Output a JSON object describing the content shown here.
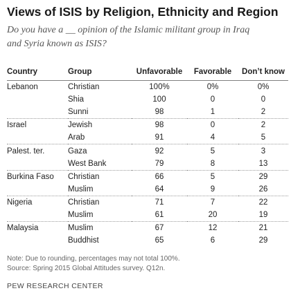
{
  "header": {
    "title": "Views of ISIS by Religion, Ethnicity and Region",
    "subtitle": "Do you have a __ opinion of the Islamic militant group in Iraq and Syria known as ISIS?"
  },
  "chart_data": {
    "type": "table",
    "title": "Views of ISIS by Religion, Ethnicity and Region",
    "columns": [
      "Country",
      "Group",
      "Unfavorable",
      "Favorable",
      "Don’t know"
    ],
    "rows": [
      {
        "country": "Lebanon",
        "group": "Christian",
        "unfavorable": "100%",
        "favorable": "0%",
        "dont_know": "0%"
      },
      {
        "country": "",
        "group": "Shia",
        "unfavorable": "100",
        "favorable": "0",
        "dont_know": "0"
      },
      {
        "country": "",
        "group": "Sunni",
        "unfavorable": "98",
        "favorable": "1",
        "dont_know": "2"
      },
      {
        "country": "Israel",
        "group": "Jewish",
        "unfavorable": "98",
        "favorable": "0",
        "dont_know": "2"
      },
      {
        "country": "",
        "group": "Arab",
        "unfavorable": "91",
        "favorable": "4",
        "dont_know": "5"
      },
      {
        "country": "Palest. ter.",
        "group": "Gaza",
        "unfavorable": "92",
        "favorable": "5",
        "dont_know": "3"
      },
      {
        "country": "",
        "group": "West Bank",
        "unfavorable": "79",
        "favorable": "8",
        "dont_know": "13"
      },
      {
        "country": "Burkina Faso",
        "group": "Christian",
        "unfavorable": "66",
        "favorable": "5",
        "dont_know": "29"
      },
      {
        "country": "",
        "group": "Muslim",
        "unfavorable": "64",
        "favorable": "9",
        "dont_know": "26"
      },
      {
        "country": "Nigeria",
        "group": "Christian",
        "unfavorable": "71",
        "favorable": "7",
        "dont_know": "22"
      },
      {
        "country": "",
        "group": "Muslim",
        "unfavorable": "61",
        "favorable": "20",
        "dont_know": "19"
      },
      {
        "country": "Malaysia",
        "group": "Muslim",
        "unfavorable": "67",
        "favorable": "12",
        "dont_know": "21"
      },
      {
        "country": "",
        "group": "Buddhist",
        "unfavorable": "65",
        "favorable": "6",
        "dont_know": "29"
      }
    ]
  },
  "footer": {
    "note": "Note: Due to rounding, percentages may not total 100%.",
    "source": "Source: Spring 2015 Global Attitudes survey. Q12n.",
    "brand": "PEW RESEARCH CENTER"
  }
}
